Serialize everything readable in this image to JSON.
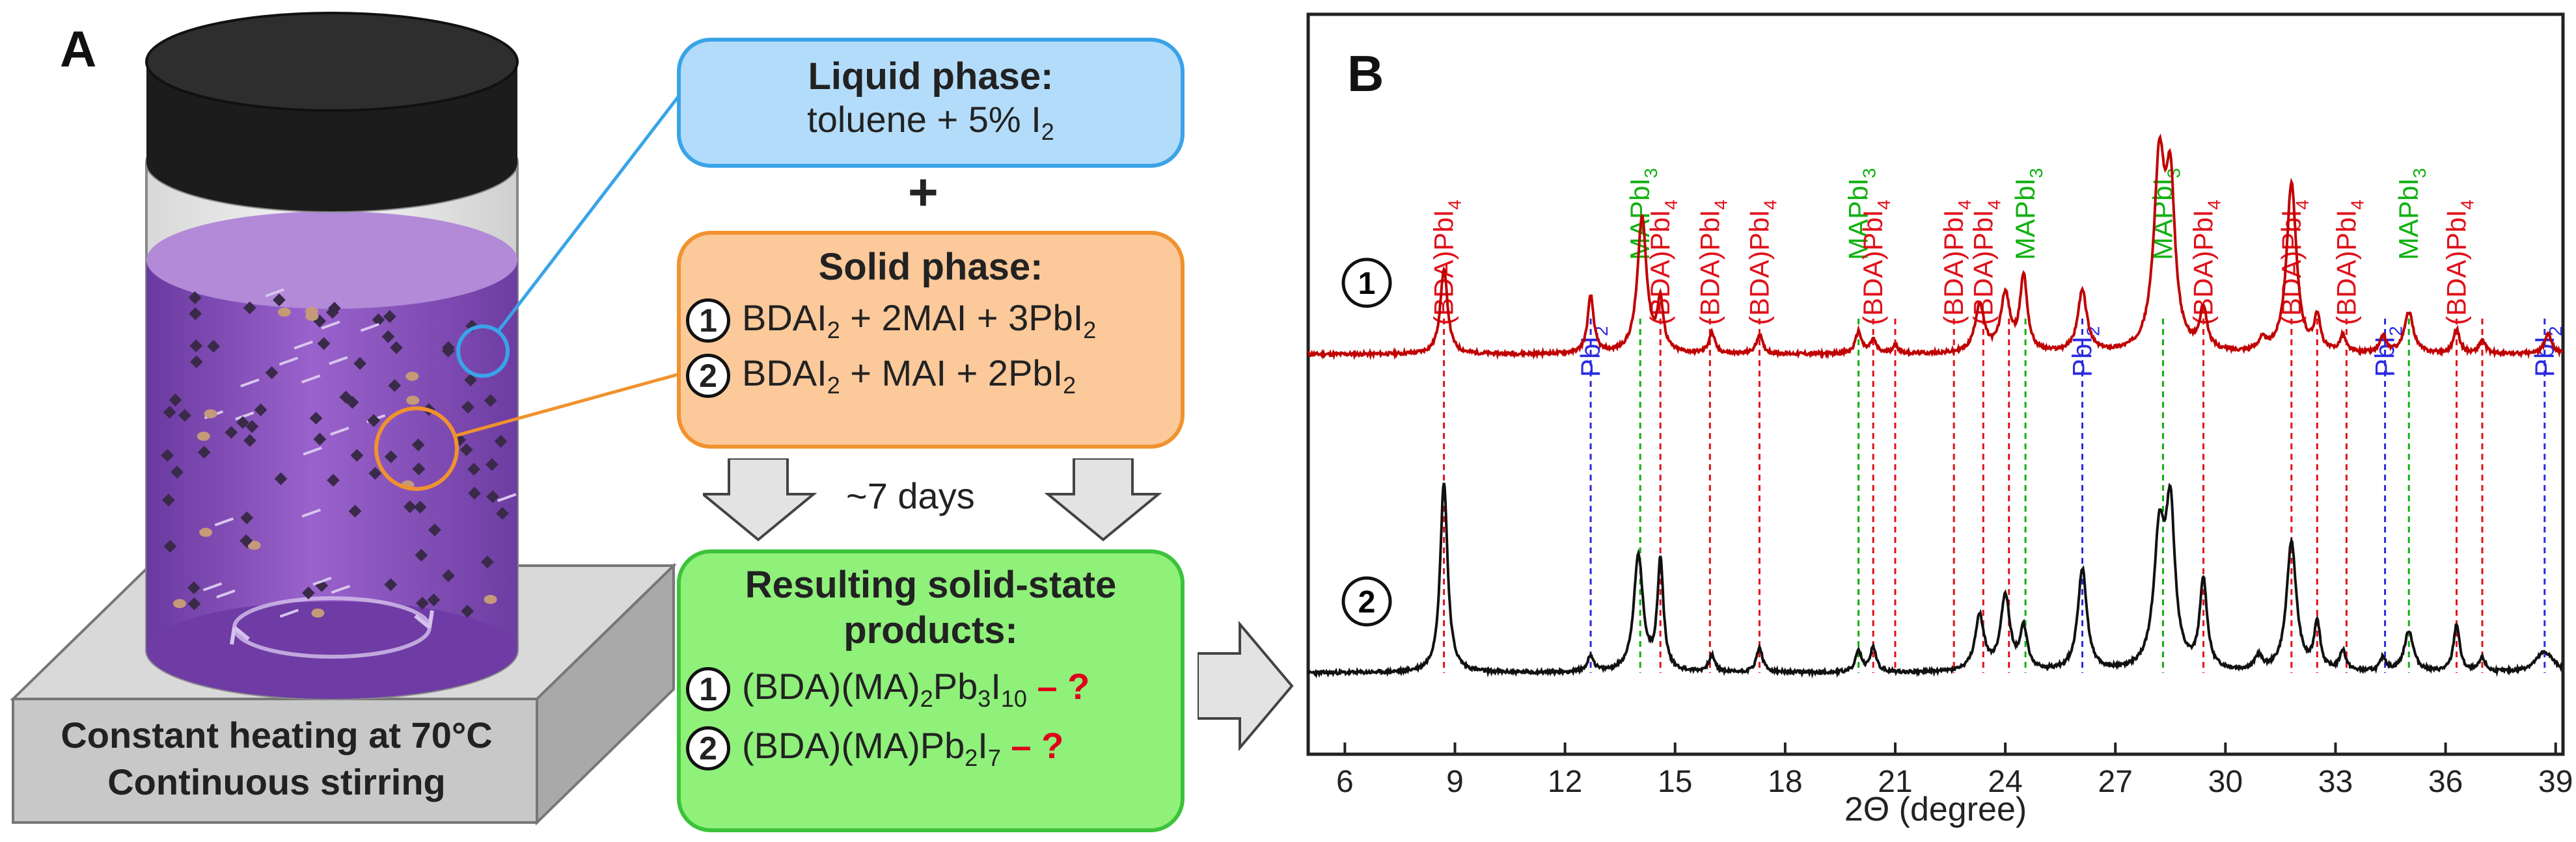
{
  "panel_a": {
    "label": "A",
    "liquid_box": {
      "title": "Liquid phase:",
      "line": "toluene + 5% I",
      "line_sub": "2"
    },
    "plus": "+",
    "solid_box": {
      "title": "Solid phase:",
      "items": [
        {
          "num": "1",
          "parts": [
            "BDAI",
            "2",
            " + 2MAI + 3PbI",
            "2"
          ]
        },
        {
          "num": "2",
          "parts": [
            "BDAI",
            "2",
            " + MAI + 2PbI",
            "2"
          ]
        }
      ]
    },
    "time_label": "~7 days",
    "result_box": {
      "title_line1": "Resulting solid-state",
      "title_line2": "products:",
      "items": [
        {
          "num": "1",
          "parts": [
            "(BDA)(MA)",
            "2",
            "Pb",
            "3",
            "I",
            "10"
          ],
          "q": " – ?"
        },
        {
          "num": "2",
          "parts": [
            "(BDA)(MA)Pb",
            "2",
            "I",
            "7"
          ],
          "q": " – ?"
        }
      ]
    },
    "caption_line1": "Constant heating at 70°C",
    "caption_line2": "Continuous stirring",
    "colors": {
      "liquid": "#b3dcfa",
      "liquid_border": "#3aa3e8",
      "solid": "#fcc99a",
      "solid_border": "#f0922e",
      "result": "#8ff07a",
      "result_border": "#3cc33a",
      "liquid_phase": "#8a4fb8",
      "cap": "#1a1a1a"
    }
  },
  "chart_data": {
    "type": "line",
    "panel_label": "B",
    "xlabel": "2Θ (degree)",
    "xlim": [
      5,
      39.2
    ],
    "xticks": [
      6,
      9,
      12,
      15,
      18,
      21,
      24,
      27,
      30,
      33,
      36,
      39
    ],
    "series": [
      {
        "name": "1",
        "color": "#c00000",
        "baseline": 0.55,
        "offset": 1,
        "peaks": [
          [
            8.7,
            0.62,
            0.12
          ],
          [
            12.7,
            0.42,
            0.1
          ],
          [
            14.1,
            1.0,
            0.15
          ],
          [
            14.6,
            0.36,
            0.1
          ],
          [
            16.0,
            0.15,
            0.1
          ],
          [
            17.3,
            0.14,
            0.1
          ],
          [
            20.0,
            0.16,
            0.1
          ],
          [
            20.4,
            0.1,
            0.1
          ],
          [
            21.0,
            0.06,
            0.1
          ],
          [
            23.3,
            0.35,
            0.15
          ],
          [
            24.0,
            0.42,
            0.15
          ],
          [
            24.5,
            0.55,
            0.12
          ],
          [
            26.1,
            0.45,
            0.15
          ],
          [
            28.2,
            1.35,
            0.18
          ],
          [
            28.5,
            1.1,
            0.15
          ],
          [
            29.4,
            0.3,
            0.12
          ],
          [
            31.0,
            0.08,
            0.12
          ],
          [
            31.8,
            1.25,
            0.16
          ],
          [
            32.5,
            0.25,
            0.1
          ],
          [
            33.2,
            0.12,
            0.1
          ],
          [
            34.3,
            0.12,
            0.1
          ],
          [
            35.0,
            0.3,
            0.15
          ],
          [
            36.3,
            0.18,
            0.1
          ],
          [
            37.0,
            0.1,
            0.1
          ],
          [
            38.8,
            0.15,
            0.12
          ]
        ]
      },
      {
        "name": "2",
        "color": "#111111",
        "baseline": 0,
        "offset": 0,
        "peaks": [
          [
            8.7,
            1.4,
            0.12
          ],
          [
            12.7,
            0.12,
            0.1
          ],
          [
            14.0,
            0.85,
            0.15
          ],
          [
            14.6,
            0.8,
            0.1
          ],
          [
            16.0,
            0.12,
            0.1
          ],
          [
            17.3,
            0.18,
            0.1
          ],
          [
            20.0,
            0.15,
            0.1
          ],
          [
            20.4,
            0.18,
            0.1
          ],
          [
            23.3,
            0.4,
            0.15
          ],
          [
            24.0,
            0.55,
            0.15
          ],
          [
            24.5,
            0.3,
            0.12
          ],
          [
            26.1,
            0.75,
            0.15
          ],
          [
            28.2,
            0.95,
            0.18
          ],
          [
            28.5,
            1.1,
            0.15
          ],
          [
            29.4,
            0.65,
            0.12
          ],
          [
            30.9,
            0.1,
            0.12
          ],
          [
            31.8,
            0.95,
            0.16
          ],
          [
            32.5,
            0.35,
            0.1
          ],
          [
            33.2,
            0.15,
            0.1
          ],
          [
            34.3,
            0.1,
            0.1
          ],
          [
            35.0,
            0.3,
            0.15
          ],
          [
            36.3,
            0.35,
            0.1
          ],
          [
            37.0,
            0.1,
            0.1
          ],
          [
            38.7,
            0.15,
            0.3
          ]
        ]
      }
    ],
    "markers": [
      {
        "x": 8.7,
        "kind": "BDA",
        "label": "(BDA)PbI4"
      },
      {
        "x": 12.7,
        "kind": "PbI2",
        "label": "PbI2"
      },
      {
        "x": 14.05,
        "kind": "MA",
        "label": "MAPbI3"
      },
      {
        "x": 14.6,
        "kind": "BDA",
        "label": "(BDA)PbI4"
      },
      {
        "x": 15.95,
        "kind": "BDA",
        "label": "(BDA)PbI4"
      },
      {
        "x": 17.3,
        "kind": "BDA",
        "label": "(BDA)PbI4"
      },
      {
        "x": 20.0,
        "kind": "MA",
        "label": "MAPbI3"
      },
      {
        "x": 20.4,
        "kind": "BDA",
        "label": "(BDA)PbI4"
      },
      {
        "x": 21.0,
        "kind": "BDA",
        "label": ""
      },
      {
        "x": 22.6,
        "kind": "BDA",
        "label": "(BDA)PbI4"
      },
      {
        "x": 23.4,
        "kind": "BDA",
        "label": "(BDA)PbI4"
      },
      {
        "x": 24.1,
        "kind": "BDA",
        "label": ""
      },
      {
        "x": 24.55,
        "kind": "MA",
        "label": "MAPbI3"
      },
      {
        "x": 26.1,
        "kind": "PbI2",
        "label": "PbI2"
      },
      {
        "x": 28.3,
        "kind": "MA",
        "label": "MAPbI3"
      },
      {
        "x": 29.4,
        "kind": "BDA",
        "label": "(BDA)PbI4"
      },
      {
        "x": 31.8,
        "kind": "BDA",
        "label": "(BDA)PbI4"
      },
      {
        "x": 32.5,
        "kind": "BDA",
        "label": ""
      },
      {
        "x": 33.3,
        "kind": "BDA",
        "label": "(BDA)PbI4"
      },
      {
        "x": 34.35,
        "kind": "PbI2",
        "label": "PbI2"
      },
      {
        "x": 35.0,
        "kind": "MA",
        "label": "MAPbI3"
      },
      {
        "x": 36.3,
        "kind": "BDA",
        "label": "(BDA)PbI4"
      },
      {
        "x": 37.0,
        "kind": "BDA",
        "label": ""
      },
      {
        "x": 38.7,
        "kind": "PbI2",
        "label": "PbI2"
      }
    ],
    "label_colors": {
      "BDA": "#e0101a",
      "PbI2": "#2a2ae0",
      "MA": "#10b010"
    }
  }
}
